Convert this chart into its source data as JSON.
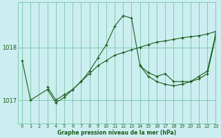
{
  "title": "Graphe pression niveau de la mer (hPa)",
  "bg_color": "#cceef0",
  "grid_color": "#66bb99",
  "line_color": "#1a5c1a",
  "xlim": [
    -0.5,
    23
  ],
  "ylim": [
    1016.55,
    1018.85
  ],
  "yticks": [
    1017,
    1018
  ],
  "xticks": [
    0,
    1,
    2,
    3,
    4,
    5,
    6,
    7,
    8,
    9,
    10,
    11,
    12,
    13,
    14,
    15,
    16,
    17,
    18,
    19,
    20,
    21,
    22,
    23
  ],
  "series": [
    {
      "x": [
        0,
        1,
        3,
        4,
        5,
        6,
        7,
        8,
        9,
        10,
        11,
        12,
        13,
        14,
        15,
        16,
        17,
        18,
        19,
        20,
        21,
        22,
        23
      ],
      "y": [
        1017.75,
        1017.0,
        1017.2,
        1016.95,
        1017.05,
        1017.2,
        1017.35,
        1017.55,
        1017.8,
        1018.05,
        1018.4,
        1018.6,
        1018.55,
        1017.65,
        1017.45,
        1017.35,
        1017.3,
        1017.27,
        1017.3,
        1017.35,
        1017.4,
        1017.5,
        1018.2
      ]
    },
    {
      "x": [
        3,
        4,
        5,
        6,
        7,
        8,
        9,
        10,
        11,
        12,
        13,
        14,
        15,
        16,
        17,
        18,
        19,
        20,
        21,
        22,
        23
      ],
      "y": [
        1017.25,
        1017.0,
        1017.1,
        1017.2,
        1017.35,
        1017.5,
        1017.65,
        1017.75,
        1017.85,
        1017.9,
        1017.95,
        1018.0,
        1018.05,
        1018.1,
        1018.12,
        1018.15,
        1018.18,
        1018.2,
        1018.22,
        1018.25,
        1018.3
      ]
    },
    {
      "x": [
        14,
        15,
        16,
        17,
        18,
        19,
        20,
        21,
        22,
        23
      ],
      "y": [
        1017.65,
        1017.52,
        1017.45,
        1017.5,
        1017.35,
        1017.35,
        1017.35,
        1017.45,
        1017.55,
        1018.25
      ]
    }
  ]
}
